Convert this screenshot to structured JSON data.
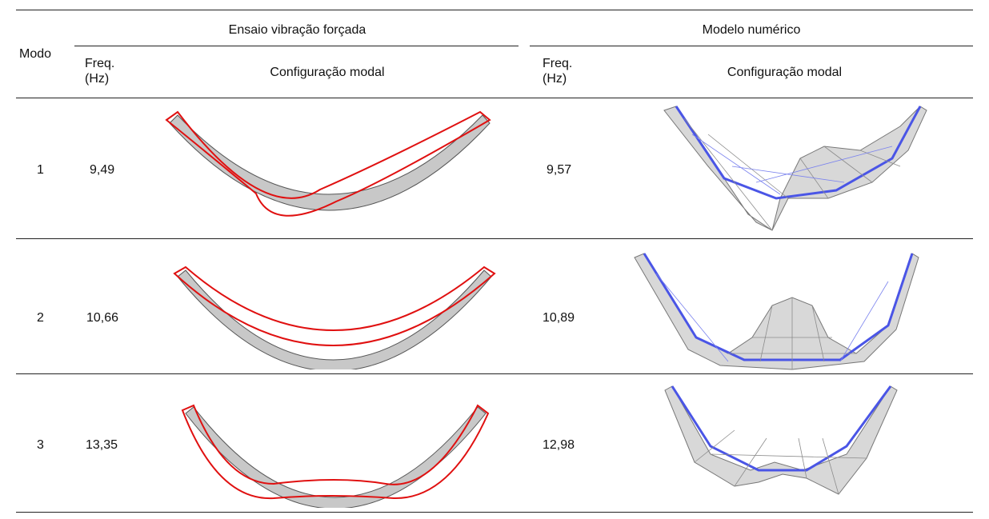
{
  "table": {
    "header": {
      "modo": "Modo",
      "group_experimental": "Ensaio vibração forçada",
      "group_numerical": "Modelo numérico",
      "freq_label_line1": "Freq.",
      "freq_label_line2": "(Hz)",
      "shape_label": "Configuração modal"
    },
    "rows": [
      {
        "mode": "1",
        "freq_test": "9,49",
        "freq_model": "9,57"
      },
      {
        "mode": "2",
        "freq_test": "10,66",
        "freq_model": "10,89"
      },
      {
        "mode": "3",
        "freq_test": "13,35",
        "freq_model": "12,98"
      }
    ]
  },
  "colors": {
    "undeformed_fill": "#c8c8c8",
    "deformed_outline": "#e01010",
    "mesh_gray": "#8c8c8c",
    "mesh_blue": "#4a55e6"
  }
}
